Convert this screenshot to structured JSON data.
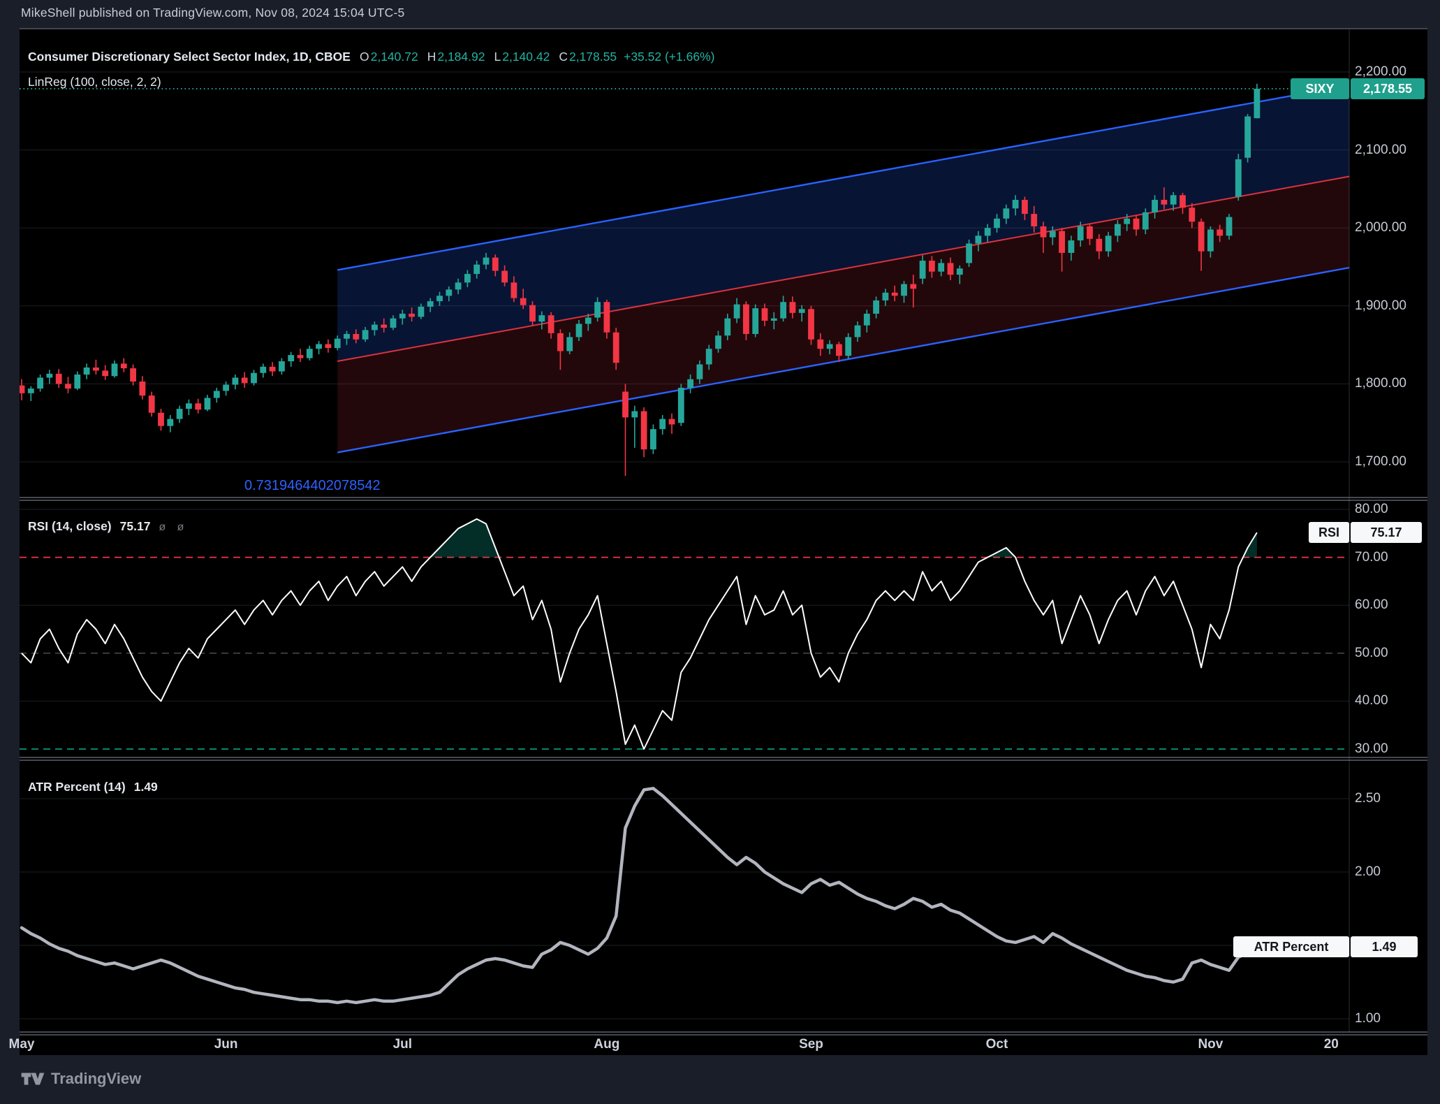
{
  "header": {
    "attribution": "MikeShell published on TradingView.com, Nov 08, 2024 15:04 UTC-5"
  },
  "main_pane": {
    "legend": {
      "title": "Consumer Discretionary Select Sector Index, 1D, CBOE",
      "ohlc": {
        "o_label": "O",
        "o": "2,140.72",
        "h_label": "H",
        "h": "2,184.92",
        "l_label": "L",
        "l": "2,140.42",
        "c_label": "C",
        "c": "2,178.55",
        "change": "+35.52 (+1.66%)"
      },
      "linreg_label": "LinReg (100, close, 2, 2)"
    },
    "pearson_r": "0.7319464402078542",
    "price_badge": {
      "symbol": "SIXY",
      "price": "2,178.55"
    },
    "y_ticks": [
      "2,200.00",
      "2,100.00",
      "2,000.00",
      "1,900.00",
      "1,800.00",
      "1,700.00"
    ]
  },
  "rsi_pane": {
    "legend": {
      "title": "RSI (14, close)",
      "value": "75.17",
      "icons": "ø ø"
    },
    "badge": {
      "label": "RSI",
      "value": "75.17"
    },
    "y_ticks": [
      "80.00",
      "70.00",
      "60.00",
      "50.00",
      "40.00",
      "30.00"
    ]
  },
  "atr_pane": {
    "legend": {
      "title": "ATR Percent (14)",
      "value": "1.49"
    },
    "badge": {
      "label": "ATR Percent",
      "value": "1.49"
    },
    "y_ticks": [
      "2.50",
      "2.00",
      "1.50",
      "1.00"
    ]
  },
  "time_axis": {
    "labels": [
      "May",
      "Jun",
      "Jul",
      "Aug",
      "Sep",
      "Oct",
      "Nov",
      "20"
    ],
    "bars": [
      0,
      22,
      41,
      63,
      85,
      105,
      128,
      141
    ]
  },
  "footer": {
    "brand": "TradingView"
  },
  "colors": {
    "up": "#26a69a",
    "down": "#f23645",
    "accent_teal": "#26a69a",
    "channel_blue": "#2962ff",
    "channel_mid_red": "#f23645",
    "rsi_line": "#ffffff",
    "atr_line": "#b2b5be",
    "overbought_red": "#f23645",
    "oversold_green": "#089981",
    "badge_symbol_bg": "#1ea08c",
    "page_bg": "#1a1e29",
    "pane_bg": "#000000",
    "pearson_blue": "#2e62ff"
  },
  "chart_data": [
    {
      "type": "candlestick",
      "title": "Consumer Discretionary Select Sector Index (SIXY), 1D, CBOE",
      "ylim": [
        1654,
        2252
      ],
      "y_grid": [
        2200,
        2100,
        2000,
        1900,
        1800,
        1700
      ],
      "close_price": 2178.55,
      "last_bar_ohlc": {
        "open": 2140.72,
        "high": 2184.92,
        "low": 2140.42,
        "close": 2178.55,
        "change": 35.52,
        "change_pct": 1.66
      },
      "linreg_channel": {
        "period": 100,
        "start_bar": 34,
        "center_price_at_start": 1829,
        "center_price_at_right_edge": 2066,
        "half_width_price": 117,
        "pearson_r": 0.7319464402078542
      },
      "ohlc": [
        [
          1798,
          1806,
          1779,
          1788
        ],
        [
          1788,
          1797,
          1778,
          1794
        ],
        [
          1794,
          1812,
          1790,
          1808
        ],
        [
          1808,
          1818,
          1800,
          1813
        ],
        [
          1813,
          1819,
          1795,
          1800
        ],
        [
          1800,
          1809,
          1788,
          1794
        ],
        [
          1794,
          1816,
          1792,
          1812
        ],
        [
          1812,
          1826,
          1806,
          1821
        ],
        [
          1821,
          1831,
          1812,
          1817
        ],
        [
          1817,
          1824,
          1805,
          1810
        ],
        [
          1810,
          1830,
          1808,
          1826
        ],
        [
          1826,
          1833,
          1815,
          1820
        ],
        [
          1820,
          1825,
          1798,
          1803
        ],
        [
          1803,
          1810,
          1780,
          1785
        ],
        [
          1785,
          1790,
          1758,
          1763
        ],
        [
          1763,
          1768,
          1740,
          1746
        ],
        [
          1746,
          1760,
          1738,
          1755
        ],
        [
          1755,
          1772,
          1750,
          1768
        ],
        [
          1768,
          1780,
          1760,
          1775
        ],
        [
          1775,
          1781,
          1762,
          1767
        ],
        [
          1767,
          1786,
          1765,
          1782
        ],
        [
          1782,
          1795,
          1776,
          1791
        ],
        [
          1791,
          1803,
          1785,
          1799
        ],
        [
          1799,
          1812,
          1793,
          1808
        ],
        [
          1808,
          1815,
          1795,
          1801
        ],
        [
          1801,
          1818,
          1798,
          1814
        ],
        [
          1814,
          1826,
          1808,
          1822
        ],
        [
          1822,
          1828,
          1810,
          1816
        ],
        [
          1816,
          1833,
          1812,
          1829
        ],
        [
          1829,
          1841,
          1822,
          1837
        ],
        [
          1837,
          1845,
          1828,
          1833
        ],
        [
          1833,
          1849,
          1830,
          1845
        ],
        [
          1845,
          1855,
          1838,
          1851
        ],
        [
          1851,
          1857,
          1840,
          1846
        ],
        [
          1846,
          1862,
          1843,
          1858
        ],
        [
          1858,
          1868,
          1850,
          1864
        ],
        [
          1864,
          1870,
          1852,
          1857
        ],
        [
          1857,
          1873,
          1854,
          1869
        ],
        [
          1869,
          1880,
          1862,
          1876
        ],
        [
          1876,
          1884,
          1866,
          1872
        ],
        [
          1872,
          1888,
          1869,
          1884
        ],
        [
          1884,
          1895,
          1876,
          1890
        ],
        [
          1890,
          1898,
          1880,
          1886
        ],
        [
          1886,
          1903,
          1883,
          1899
        ],
        [
          1899,
          1910,
          1892,
          1906
        ],
        [
          1906,
          1918,
          1900,
          1913
        ],
        [
          1913,
          1925,
          1906,
          1921
        ],
        [
          1921,
          1935,
          1915,
          1930
        ],
        [
          1930,
          1946,
          1924,
          1941
        ],
        [
          1941,
          1958,
          1935,
          1953
        ],
        [
          1953,
          1968,
          1947,
          1962
        ],
        [
          1962,
          1966,
          1938,
          1945
        ],
        [
          1945,
          1952,
          1925,
          1930
        ],
        [
          1930,
          1938,
          1905,
          1910
        ],
        [
          1910,
          1922,
          1896,
          1901
        ],
        [
          1901,
          1906,
          1875,
          1880
        ],
        [
          1880,
          1893,
          1870,
          1888
        ],
        [
          1888,
          1892,
          1858,
          1865
        ],
        [
          1865,
          1870,
          1818,
          1842
        ],
        [
          1842,
          1866,
          1838,
          1860
        ],
        [
          1860,
          1882,
          1855,
          1877
        ],
        [
          1877,
          1890,
          1868,
          1885
        ],
        [
          1885,
          1911,
          1880,
          1905
        ],
        [
          1905,
          1908,
          1858,
          1866
        ],
        [
          1866,
          1872,
          1818,
          1827
        ],
        [
          1790,
          1800,
          1682,
          1757
        ],
        [
          1757,
          1772,
          1718,
          1765
        ],
        [
          1765,
          1770,
          1706,
          1716
        ],
        [
          1716,
          1748,
          1710,
          1742
        ],
        [
          1742,
          1760,
          1735,
          1755
        ],
        [
          1755,
          1762,
          1736,
          1748
        ],
        [
          1750,
          1800,
          1746,
          1795
        ],
        [
          1795,
          1812,
          1788,
          1806
        ],
        [
          1806,
          1830,
          1800,
          1825
        ],
        [
          1825,
          1850,
          1818,
          1845
        ],
        [
          1845,
          1868,
          1840,
          1862
        ],
        [
          1862,
          1890,
          1856,
          1884
        ],
        [
          1884,
          1910,
          1878,
          1902
        ],
        [
          1902,
          1906,
          1856,
          1864
        ],
        [
          1864,
          1902,
          1860,
          1897
        ],
        [
          1897,
          1903,
          1874,
          1881
        ],
        [
          1881,
          1892,
          1870,
          1884
        ],
        [
          1884,
          1913,
          1880,
          1905
        ],
        [
          1905,
          1912,
          1884,
          1891
        ],
        [
          1891,
          1901,
          1880,
          1896
        ],
        [
          1896,
          1900,
          1850,
          1857
        ],
        [
          1857,
          1865,
          1836,
          1845
        ],
        [
          1845,
          1856,
          1838,
          1851
        ],
        [
          1851,
          1854,
          1828,
          1836
        ],
        [
          1836,
          1865,
          1832,
          1860
        ],
        [
          1860,
          1880,
          1854,
          1875
        ],
        [
          1875,
          1895,
          1866,
          1890
        ],
        [
          1890,
          1912,
          1884,
          1907
        ],
        [
          1907,
          1922,
          1900,
          1917
        ],
        [
          1917,
          1926,
          1906,
          1913
        ],
        [
          1913,
          1932,
          1904,
          1928
        ],
        [
          1928,
          1940,
          1898,
          1922
        ],
        [
          1935,
          1965,
          1928,
          1958
        ],
        [
          1958,
          1964,
          1936,
          1944
        ],
        [
          1944,
          1960,
          1938,
          1955
        ],
        [
          1955,
          1962,
          1933,
          1940
        ],
        [
          1940,
          1952,
          1928,
          1948
        ],
        [
          1955,
          1985,
          1950,
          1980
        ],
        [
          1980,
          1996,
          1970,
          1990
        ],
        [
          1990,
          2005,
          1982,
          2000
        ],
        [
          2000,
          2018,
          1994,
          2012
        ],
        [
          2012,
          2030,
          2005,
          2025
        ],
        [
          2025,
          2042,
          2016,
          2036
        ],
        [
          2036,
          2040,
          2010,
          2018
        ],
        [
          2018,
          2028,
          1994,
          2002
        ],
        [
          2002,
          2008,
          1968,
          1988
        ],
        [
          1988,
          2002,
          1978,
          1996
        ],
        [
          1996,
          2000,
          1944,
          1968
        ],
        [
          1968,
          1990,
          1958,
          1984
        ],
        [
          1984,
          2008,
          1976,
          2002
        ],
        [
          2002,
          2006,
          1978,
          1986
        ],
        [
          1986,
          1992,
          1960,
          1970
        ],
        [
          1970,
          1995,
          1963,
          1990
        ],
        [
          1990,
          2010,
          1982,
          2005
        ],
        [
          2005,
          2018,
          1996,
          2012
        ],
        [
          2012,
          2016,
          1990,
          1998
        ],
        [
          1998,
          2025,
          1992,
          2020
        ],
        [
          2020,
          2042,
          2012,
          2036
        ],
        [
          2036,
          2052,
          2024,
          2030
        ],
        [
          2030,
          2046,
          2022,
          2042
        ],
        [
          2042,
          2045,
          2018,
          2026
        ],
        [
          2026,
          2032,
          2000,
          2008
        ],
        [
          2008,
          2012,
          1945,
          1970
        ],
        [
          1970,
          2002,
          1962,
          1998
        ],
        [
          1998,
          2004,
          1982,
          1990
        ],
        [
          1990,
          2018,
          1985,
          2014
        ],
        [
          2040,
          2095,
          2035,
          2088
        ],
        [
          2090,
          2146,
          2084,
          2143
        ],
        [
          2140.72,
          2184.92,
          2140.42,
          2178.55
        ]
      ]
    },
    {
      "type": "line",
      "name": "RSI (14, close)",
      "last_value": 75.17,
      "levels": {
        "overbought": 70,
        "middle": 50,
        "oversold": 30
      },
      "y_grid": [
        80,
        70,
        60,
        50,
        40,
        30
      ],
      "ylim": [
        28,
        82
      ],
      "values": [
        50,
        48,
        53,
        55,
        51,
        48,
        54,
        57,
        55,
        52,
        56,
        53,
        49,
        45,
        42,
        40,
        44,
        48,
        51,
        49,
        53,
        55,
        57,
        59,
        56,
        59,
        61,
        58,
        61,
        63,
        60,
        63,
        65,
        61,
        64,
        66,
        62,
        65,
        67,
        64,
        66,
        68,
        65,
        68,
        70,
        72,
        74,
        76,
        77,
        78,
        77,
        72,
        67,
        62,
        64,
        57,
        61,
        55,
        44,
        50,
        55,
        58,
        62,
        52,
        42,
        31,
        35,
        30,
        34,
        38,
        36,
        46,
        49,
        53,
        57,
        60,
        63,
        66,
        56,
        62,
        58,
        59,
        63,
        58,
        60,
        50,
        45,
        47,
        44,
        50,
        54,
        57,
        61,
        63,
        61,
        63,
        61,
        67,
        63,
        65,
        61,
        63,
        66,
        69,
        70,
        71,
        72,
        70,
        65,
        61,
        58,
        61,
        52,
        57,
        62,
        58,
        52,
        57,
        61,
        63,
        58,
        63,
        66,
        62,
        65,
        60,
        55,
        47,
        56,
        53,
        59,
        68,
        72,
        75.17
      ]
    },
    {
      "type": "line",
      "name": "ATR Percent (14)",
      "last_value": 1.49,
      "y_grid": [
        2.5,
        2.0,
        1.5,
        1.0
      ],
      "ylim": [
        0.9,
        2.9
      ],
      "values": [
        1.62,
        1.58,
        1.55,
        1.51,
        1.48,
        1.46,
        1.43,
        1.41,
        1.39,
        1.37,
        1.38,
        1.36,
        1.34,
        1.36,
        1.38,
        1.4,
        1.38,
        1.35,
        1.32,
        1.29,
        1.27,
        1.25,
        1.23,
        1.21,
        1.2,
        1.18,
        1.17,
        1.16,
        1.15,
        1.14,
        1.13,
        1.13,
        1.12,
        1.12,
        1.11,
        1.12,
        1.11,
        1.12,
        1.13,
        1.12,
        1.12,
        1.13,
        1.14,
        1.15,
        1.16,
        1.18,
        1.24,
        1.3,
        1.34,
        1.37,
        1.4,
        1.41,
        1.4,
        1.38,
        1.36,
        1.35,
        1.44,
        1.47,
        1.52,
        1.5,
        1.47,
        1.44,
        1.48,
        1.55,
        1.7,
        2.3,
        2.45,
        2.56,
        2.57,
        2.52,
        2.46,
        2.4,
        2.34,
        2.28,
        2.22,
        2.16,
        2.1,
        2.05,
        2.1,
        2.06,
        2.0,
        1.96,
        1.92,
        1.89,
        1.86,
        1.92,
        1.95,
        1.91,
        1.93,
        1.89,
        1.85,
        1.82,
        1.8,
        1.77,
        1.75,
        1.78,
        1.82,
        1.8,
        1.76,
        1.78,
        1.74,
        1.72,
        1.68,
        1.64,
        1.6,
        1.56,
        1.53,
        1.52,
        1.54,
        1.56,
        1.52,
        1.58,
        1.55,
        1.51,
        1.48,
        1.45,
        1.42,
        1.39,
        1.36,
        1.33,
        1.31,
        1.29,
        1.28,
        1.26,
        1.25,
        1.27,
        1.38,
        1.4,
        1.37,
        1.35,
        1.33,
        1.42,
        1.45,
        1.49
      ]
    }
  ]
}
